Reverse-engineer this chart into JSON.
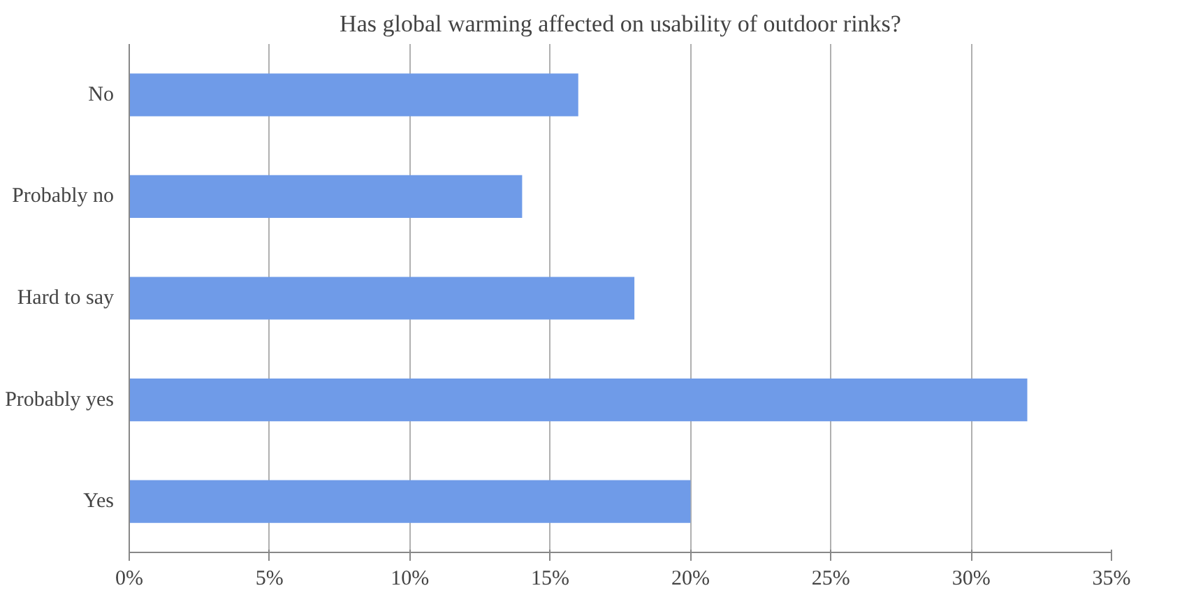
{
  "chart_data": {
    "type": "bar",
    "orientation": "horizontal",
    "title": "Has global warming affected on usability of outdoor rinks?",
    "categories": [
      "No",
      "Probably no",
      "Hard to say",
      "Probably yes",
      "Yes"
    ],
    "values": [
      16,
      14,
      18,
      32,
      20
    ],
    "color": "#6f9be8",
    "xlim": [
      0,
      35
    ],
    "xticks": [
      {
        "value": 0,
        "label": "0%"
      },
      {
        "value": 5,
        "label": "5%"
      },
      {
        "value": 10,
        "label": "10%"
      },
      {
        "value": 15,
        "label": "15%"
      },
      {
        "value": 20,
        "label": "20%"
      },
      {
        "value": 25,
        "label": "25%"
      },
      {
        "value": 30,
        "label": "30%"
      },
      {
        "value": 35,
        "label": "35%"
      }
    ],
    "grid": "x"
  }
}
